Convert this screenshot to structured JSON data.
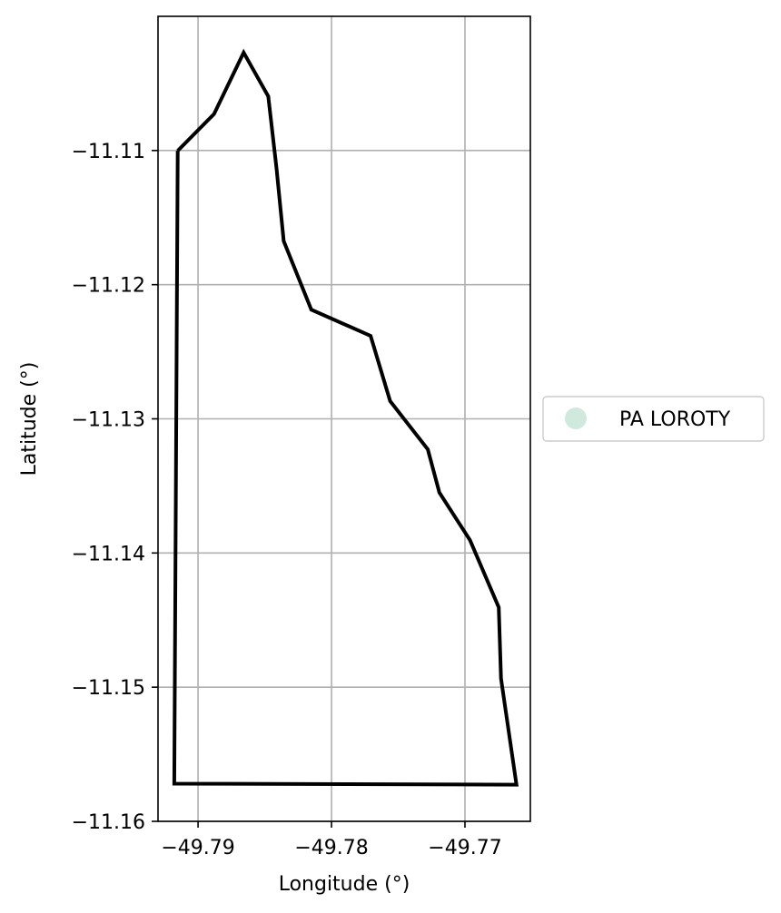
{
  "chart_data": {
    "type": "map",
    "xlabel": "Longitude (°)",
    "ylabel": "Latitude (°)",
    "xlim": [
      -49.793,
      -49.7651
    ],
    "ylim": [
      -11.16,
      -11.1
    ],
    "grid": true,
    "x_ticks": [
      {
        "value": -49.79,
        "label": "−49.79"
      },
      {
        "value": -49.78,
        "label": "−49.78"
      },
      {
        "value": -49.77,
        "label": "−49.77"
      }
    ],
    "y_ticks": [
      {
        "value": -11.11,
        "label": "−11.11"
      },
      {
        "value": -11.12,
        "label": "−11.12"
      },
      {
        "value": -11.13,
        "label": "−11.13"
      },
      {
        "value": -11.14,
        "label": "−11.14"
      },
      {
        "value": -11.15,
        "label": "−11.15"
      },
      {
        "value": -11.16,
        "label": "−11.16"
      }
    ],
    "legend": {
      "placement": "center-right outside",
      "entries": [
        {
          "label": "PA LOROTY",
          "color": "#cfeadc"
        }
      ]
    },
    "boundary_color": "#000000",
    "polygon": [
      [
        -49.79152,
        -11.11002
      ],
      [
        -49.7888,
        -11.10728
      ],
      [
        -49.78658,
        -11.1027
      ],
      [
        -49.78474,
        -11.10596
      ],
      [
        -49.78412,
        -11.11134
      ],
      [
        -49.78358,
        -11.11675
      ],
      [
        -49.78151,
        -11.12186
      ],
      [
        -49.77707,
        -11.12382
      ],
      [
        -49.77561,
        -11.12868
      ],
      [
        -49.77278,
        -11.13228
      ],
      [
        -49.77192,
        -11.13549
      ],
      [
        -49.76962,
        -11.13905
      ],
      [
        -49.76747,
        -11.14405
      ],
      [
        -49.7673,
        -11.14936
      ],
      [
        -49.76614,
        -11.15727
      ],
      [
        -49.79178,
        -11.15719
      ],
      [
        -49.79152,
        -11.11002
      ]
    ]
  }
}
